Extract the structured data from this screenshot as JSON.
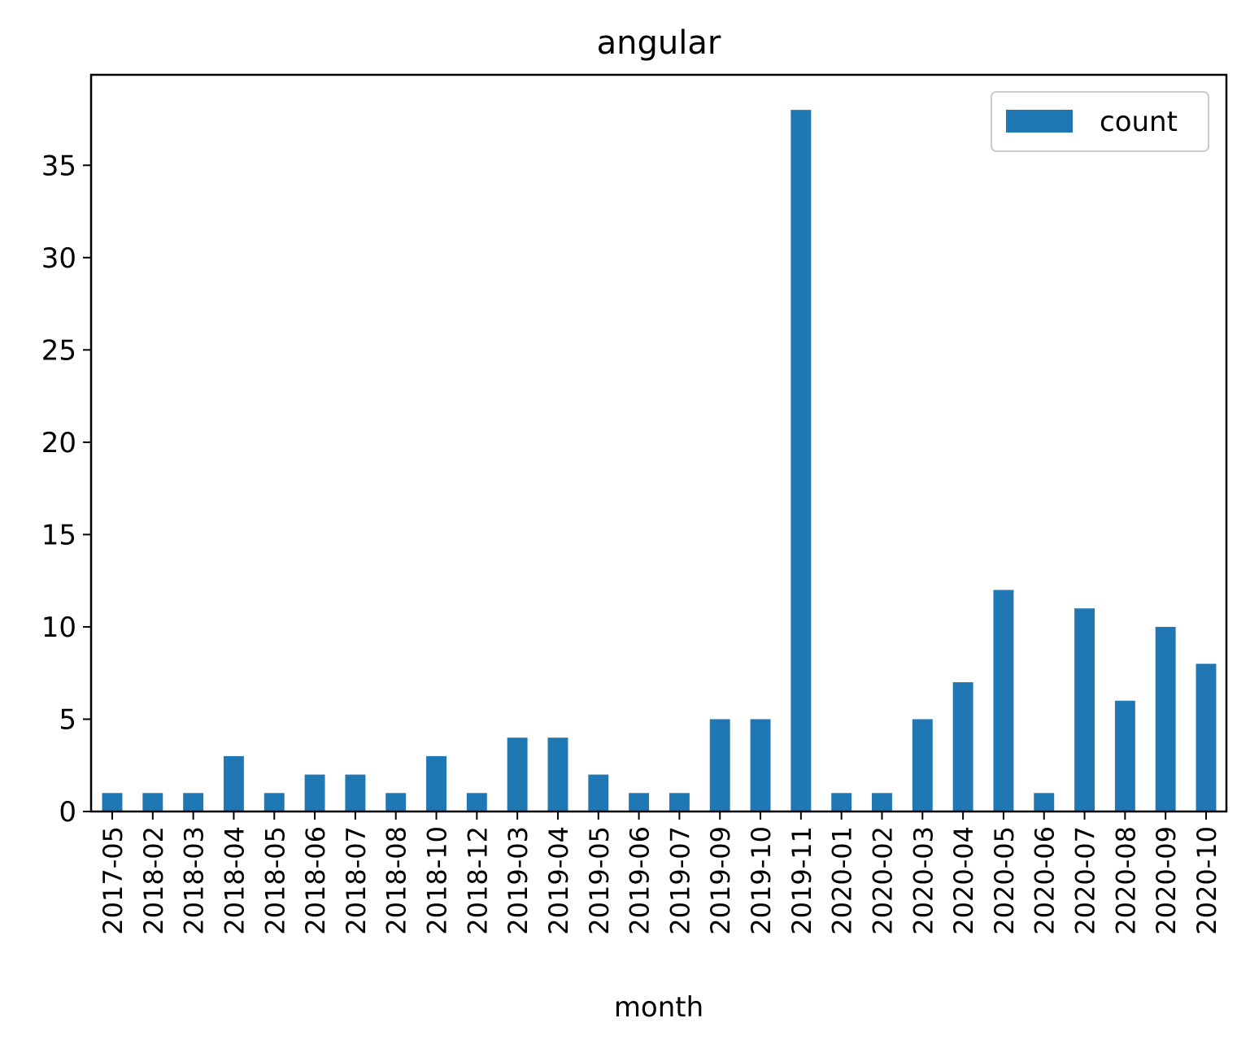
{
  "chart_data": {
    "type": "bar",
    "title": "angular",
    "xlabel": "month",
    "ylabel": "",
    "categories": [
      "2017-05",
      "2018-02",
      "2018-03",
      "2018-04",
      "2018-05",
      "2018-06",
      "2018-07",
      "2018-08",
      "2018-10",
      "2018-12",
      "2019-03",
      "2019-04",
      "2019-05",
      "2019-06",
      "2019-07",
      "2019-09",
      "2019-10",
      "2019-11",
      "2020-01",
      "2020-02",
      "2020-03",
      "2020-04",
      "2020-05",
      "2020-06",
      "2020-07",
      "2020-08",
      "2020-09",
      "2020-10"
    ],
    "series": [
      {
        "name": "count",
        "color": "#1f77b4",
        "values": [
          1,
          1,
          1,
          3,
          1,
          2,
          2,
          1,
          3,
          1,
          4,
          4,
          2,
          1,
          1,
          5,
          5,
          38,
          1,
          1,
          5,
          7,
          12,
          1,
          11,
          6,
          10,
          8
        ]
      }
    ],
    "ylim": [
      0,
      39.9
    ],
    "yticks": [
      0,
      5,
      10,
      15,
      20,
      25,
      30,
      35
    ],
    "legend": {
      "position": "top-right",
      "entries": [
        "count"
      ]
    },
    "grid": false
  }
}
